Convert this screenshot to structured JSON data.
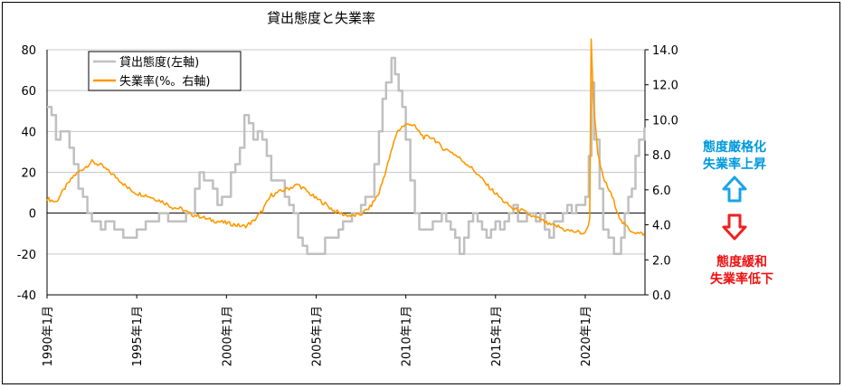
{
  "chart_data": {
    "type": "line",
    "title": "貸出態度と失業率",
    "left_axis": {
      "ylim": [
        -40,
        80
      ],
      "ticks": [
        "80",
        "60",
        "40",
        "20",
        "0",
        "-20",
        "-40"
      ]
    },
    "right_axis": {
      "ylim": [
        0,
        14
      ],
      "ticks": [
        "14.0",
        "12.0",
        "10.0",
        "8.0",
        "6.0",
        "4.0",
        "2.0",
        "0.0"
      ]
    },
    "x_ticks": [
      "1990年1月",
      "1995年1月",
      "2000年1月",
      "2005年1月",
      "2010年1月",
      "2015年1月",
      "2020年1月"
    ],
    "grid": true,
    "legend_position": "top-left",
    "series": [
      {
        "name": "貸出態度(左軸)",
        "axis": "left",
        "color": "#c0c0c0",
        "points": [
          [
            1990.0,
            53
          ],
          [
            1990.5,
            38
          ],
          [
            1991.0,
            41
          ],
          [
            1991.5,
            22
          ],
          [
            1992.0,
            8
          ],
          [
            1992.5,
            -5
          ],
          [
            1993.0,
            -8
          ],
          [
            1993.5,
            -6
          ],
          [
            1994.0,
            -10
          ],
          [
            1994.5,
            -12
          ],
          [
            1995.0,
            -11
          ],
          [
            1995.5,
            -4
          ],
          [
            1996.0,
            -2
          ],
          [
            1996.5,
            1
          ],
          [
            1997.0,
            -3
          ],
          [
            1997.5,
            -8
          ],
          [
            1998.0,
            3
          ],
          [
            1998.5,
            20
          ],
          [
            1999.0,
            12
          ],
          [
            1999.5,
            5
          ],
          [
            2000.0,
            8
          ],
          [
            2000.5,
            26
          ],
          [
            2001.0,
            45
          ],
          [
            2001.5,
            38
          ],
          [
            2002.0,
            40
          ],
          [
            2002.5,
            18
          ],
          [
            2003.0,
            15
          ],
          [
            2003.5,
            3
          ],
          [
            2004.0,
            -10
          ],
          [
            2004.5,
            -18
          ],
          [
            2005.0,
            -20
          ],
          [
            2005.5,
            -14
          ],
          [
            2006.0,
            -8
          ],
          [
            2006.5,
            -4
          ],
          [
            2007.0,
            0
          ],
          [
            2007.5,
            3
          ],
          [
            2008.0,
            10
          ],
          [
            2008.5,
            40
          ],
          [
            2008.9,
            68
          ],
          [
            2009.2,
            74
          ],
          [
            2009.6,
            63
          ],
          [
            2010.0,
            38
          ],
          [
            2010.5,
            0
          ],
          [
            2011.0,
            -8
          ],
          [
            2011.5,
            -4
          ],
          [
            2012.0,
            -2
          ],
          [
            2012.5,
            -6
          ],
          [
            2013.0,
            -22
          ],
          [
            2013.5,
            -5
          ],
          [
            2014.0,
            -3
          ],
          [
            2014.5,
            -10
          ],
          [
            2015.0,
            -6
          ],
          [
            2015.5,
            -2
          ],
          [
            2016.0,
            1
          ],
          [
            2016.5,
            -4
          ],
          [
            2017.0,
            -2
          ],
          [
            2017.5,
            0
          ],
          [
            2018.0,
            -8
          ],
          [
            2018.5,
            -3
          ],
          [
            2019.0,
            0
          ],
          [
            2019.5,
            2
          ],
          [
            2020.0,
            5
          ],
          [
            2020.2,
            25
          ],
          [
            2020.35,
            66
          ],
          [
            2020.5,
            40
          ],
          [
            2020.8,
            10
          ],
          [
            2021.0,
            -5
          ],
          [
            2021.3,
            -12
          ],
          [
            2021.6,
            -24
          ],
          [
            2022.0,
            -10
          ],
          [
            2022.4,
            5
          ],
          [
            2022.8,
            28
          ],
          [
            2023.0,
            35
          ],
          [
            2023.3,
            42
          ]
        ]
      },
      {
        "name": "失業率(%。右軸)",
        "axis": "right",
        "color": "#ff9900",
        "points": [
          [
            1990.0,
            5.5
          ],
          [
            1990.5,
            5.3
          ],
          [
            1991.0,
            6.1
          ],
          [
            1991.5,
            6.8
          ],
          [
            1992.0,
            7.2
          ],
          [
            1992.5,
            7.6
          ],
          [
            1993.0,
            7.4
          ],
          [
            1993.5,
            7.0
          ],
          [
            1994.0,
            6.6
          ],
          [
            1994.5,
            6.1
          ],
          [
            1995.0,
            5.8
          ],
          [
            1995.5,
            5.7
          ],
          [
            1996.0,
            5.5
          ],
          [
            1996.5,
            5.3
          ],
          [
            1997.0,
            5.0
          ],
          [
            1997.5,
            4.9
          ],
          [
            1998.0,
            4.6
          ],
          [
            1998.5,
            4.5
          ],
          [
            1999.0,
            4.3
          ],
          [
            1999.5,
            4.2
          ],
          [
            2000.0,
            4.1
          ],
          [
            2000.5,
            4.0
          ],
          [
            2001.0,
            3.9
          ],
          [
            2001.5,
            4.2
          ],
          [
            2002.0,
            4.8
          ],
          [
            2002.5,
            5.7
          ],
          [
            2003.0,
            5.9
          ],
          [
            2003.5,
            6.1
          ],
          [
            2004.0,
            6.3
          ],
          [
            2004.5,
            5.9
          ],
          [
            2005.0,
            5.5
          ],
          [
            2005.5,
            5.2
          ],
          [
            2006.0,
            4.8
          ],
          [
            2006.5,
            4.6
          ],
          [
            2007.0,
            4.5
          ],
          [
            2007.5,
            4.6
          ],
          [
            2008.0,
            5.0
          ],
          [
            2008.5,
            5.8
          ],
          [
            2009.0,
            7.5
          ],
          [
            2009.5,
            9.3
          ],
          [
            2009.8,
            9.6
          ],
          [
            2010.2,
            9.8
          ],
          [
            2010.5,
            9.6
          ],
          [
            2011.0,
            9.0
          ],
          [
            2011.5,
            9.0
          ],
          [
            2012.0,
            8.4
          ],
          [
            2012.5,
            8.2
          ],
          [
            2013.0,
            7.8
          ],
          [
            2013.5,
            7.4
          ],
          [
            2014.0,
            6.9
          ],
          [
            2014.5,
            6.3
          ],
          [
            2015.0,
            5.8
          ],
          [
            2015.5,
            5.3
          ],
          [
            2016.0,
            4.9
          ],
          [
            2016.5,
            4.8
          ],
          [
            2017.0,
            4.5
          ],
          [
            2017.5,
            4.3
          ],
          [
            2018.0,
            4.0
          ],
          [
            2018.5,
            3.9
          ],
          [
            2018.9,
            3.7
          ],
          [
            2019.5,
            3.6
          ],
          [
            2020.0,
            3.5
          ],
          [
            2020.25,
            4.3
          ],
          [
            2020.33,
            14.7
          ],
          [
            2020.45,
            11.2
          ],
          [
            2020.7,
            8.0
          ],
          [
            2021.0,
            6.7
          ],
          [
            2021.5,
            5.6
          ],
          [
            2022.0,
            4.2
          ],
          [
            2022.5,
            3.7
          ],
          [
            2023.0,
            3.5
          ],
          [
            2023.3,
            3.5
          ]
        ]
      }
    ]
  },
  "annotations": {
    "tighten_line1": "態度厳格化",
    "tighten_line2": "失業率上昇",
    "tighten_color": "#0099dd",
    "ease_line1": "態度緩和",
    "ease_line2": "失業率低下",
    "ease_color": "#ee1111"
  }
}
